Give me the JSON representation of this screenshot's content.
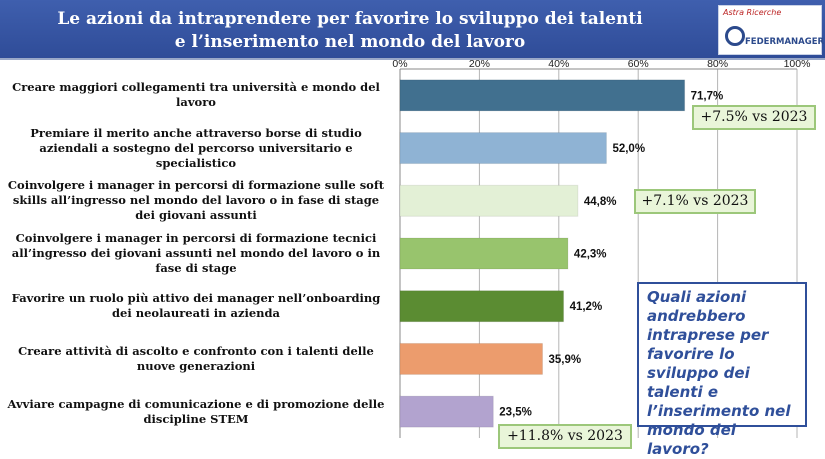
{
  "header": {
    "title_line1": "Le azioni da intraprendere per favorire lo sviluppo dei talenti",
    "title_line2": "e l’inserimento nel mondo del lavoro",
    "logo_top_text": "Astra Ricerche",
    "logo_bottom_text": "FEDERMANAGER"
  },
  "chart_data": {
    "type": "bar",
    "orientation": "horizontal",
    "categories": [
      "Creare maggiori collegamenti tra università e mondo del lavoro",
      "Premiare il merito anche attraverso borse di studio aziendali a sostegno del percorso universitario e specialistico",
      "Coinvolgere i manager in percorsi di formazione sulle soft skills all’ingresso nel mondo del lavoro o in fase di stage dei giovani assunti",
      "Coinvolgere i manager in percorsi di formazione tecnici all’ingresso dei giovani assunti nel mondo del lavoro o in fase di stage",
      "Favorire un ruolo più attivo dei manager nell’onboarding dei neolaureati in azienda",
      "Creare attività di ascolto e confronto con i talenti delle nuove generazioni",
      "Avviare campagne di comunicazione e di promozione delle discipline STEM"
    ],
    "values": [
      71.7,
      52.0,
      44.8,
      42.3,
      41.2,
      35.9,
      23.5
    ],
    "value_labels": [
      "71,7%",
      "52,0%",
      "44,8%",
      "42,3%",
      "41,2%",
      "35,9%",
      "23,5%"
    ],
    "colors": [
      "#41708f",
      "#8fb3d4",
      "#e3f0d6",
      "#98c46d",
      "#5b8c32",
      "#ec9c6d",
      "#b2a3cf"
    ],
    "xlim": [
      0,
      100
    ],
    "x_ticks": [
      "0%",
      "20%",
      "40%",
      "60%",
      "80%",
      "100%"
    ],
    "tick_position": "top",
    "grid": true,
    "annotations": [
      {
        "category_index": 0,
        "text": "+7.5% vs 2023"
      },
      {
        "category_index": 2,
        "text": "+7.1% vs 2023"
      },
      {
        "category_index": 6,
        "text": "+11.8% vs 2023"
      }
    ]
  },
  "label_lines": [
    [
      "Creare maggiori collegamenti tra università e mondo del",
      "lavoro"
    ],
    [
      "Premiare il merito anche attraverso borse di studio",
      "aziendali a sostegno del percorso universitario e",
      "specialistico"
    ],
    [
      "Coinvolgere i manager in percorsi di formazione sulle soft",
      "skills all’ingresso nel mondo del lavoro o in fase di stage",
      "dei giovani assunti"
    ],
    [
      "Coinvolgere i manager in percorsi di formazione tecnici",
      "all’ingresso dei giovani assunti nel mondo del lavoro o in",
      "fase di stage"
    ],
    [
      "Favorire un ruolo più attivo dei manager nell’onboarding",
      "dei neolaureati in azienda"
    ],
    [
      "Creare attività di ascolto e confronto con i talenti delle",
      "nuove generazioni"
    ],
    [
      "Avviare campagne di comunicazione e di promozione delle",
      "discipline STEM"
    ]
  ],
  "question_box": {
    "text": "Quali azioni andrebbero intraprese per favorire lo sviluppo dei talenti e l’inserimento nel mondo del lavoro?"
  }
}
